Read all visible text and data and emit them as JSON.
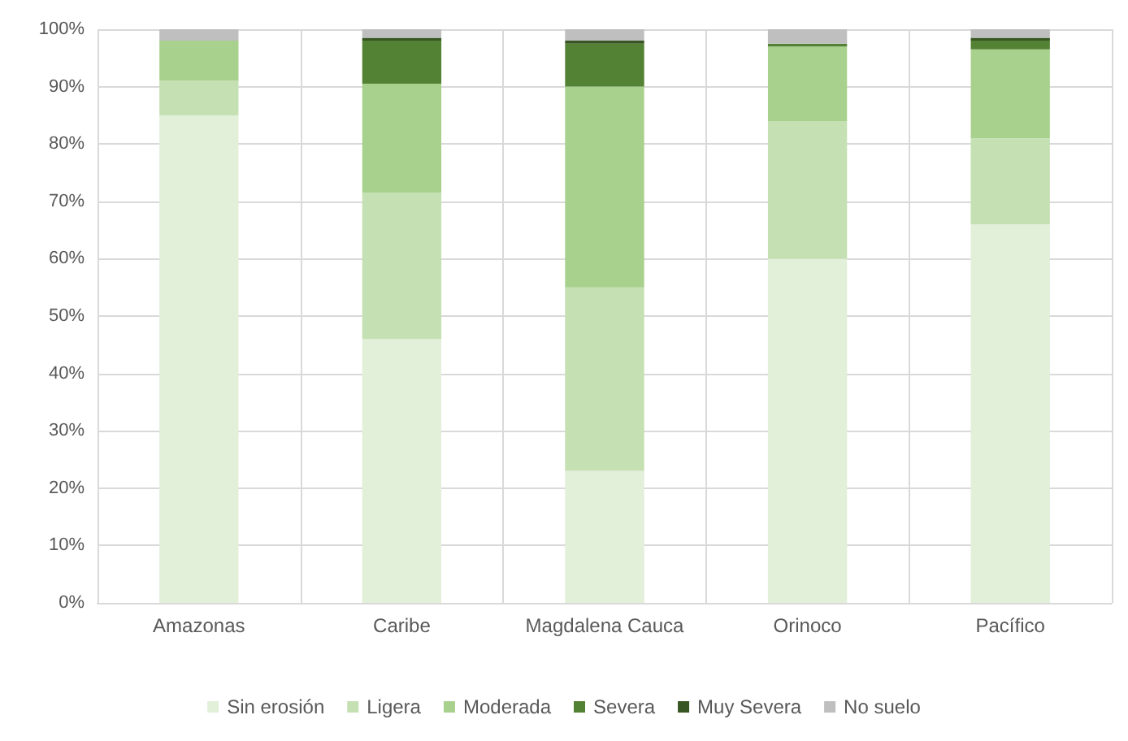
{
  "chart_data": {
    "type": "bar",
    "stacked": true,
    "categories": [
      "Amazonas",
      "Caribe",
      "Magdalena Cauca",
      "Orinoco",
      "Pacífico"
    ],
    "series": [
      {
        "name": "Sin erosión",
        "color": "#e2efd9",
        "values": [
          85,
          46,
          23,
          60,
          66
        ]
      },
      {
        "name": "Ligera",
        "color": "#c5e0b3",
        "values": [
          6,
          25.5,
          32,
          24,
          15
        ]
      },
      {
        "name": "Moderada",
        "color": "#a9d18e",
        "values": [
          7,
          19,
          35,
          13,
          15.5
        ]
      },
      {
        "name": "Severa",
        "color": "#548235",
        "values": [
          0,
          7.5,
          7.5,
          0.5,
          1.5
        ]
      },
      {
        "name": "Muy Severa",
        "color": "#375623",
        "values": [
          0,
          0.5,
          0.5,
          0,
          0.5
        ]
      },
      {
        "name": "No suelo",
        "color": "#bfbfbf",
        "values": [
          2,
          1.5,
          2,
          2.5,
          1.5
        ]
      }
    ],
    "ylim": [
      0,
      100
    ],
    "yticks": [
      {
        "value": 0,
        "label": "0%"
      },
      {
        "value": 10,
        "label": "10%"
      },
      {
        "value": 20,
        "label": "20%"
      },
      {
        "value": 30,
        "label": "30%"
      },
      {
        "value": 40,
        "label": "40%"
      },
      {
        "value": 50,
        "label": "50%"
      },
      {
        "value": 60,
        "label": "60%"
      },
      {
        "value": 70,
        "label": "70%"
      },
      {
        "value": 80,
        "label": "80%"
      },
      {
        "value": 90,
        "label": "90%"
      },
      {
        "value": 100,
        "label": "100%"
      }
    ],
    "grid": true,
    "legend": "bottom"
  }
}
